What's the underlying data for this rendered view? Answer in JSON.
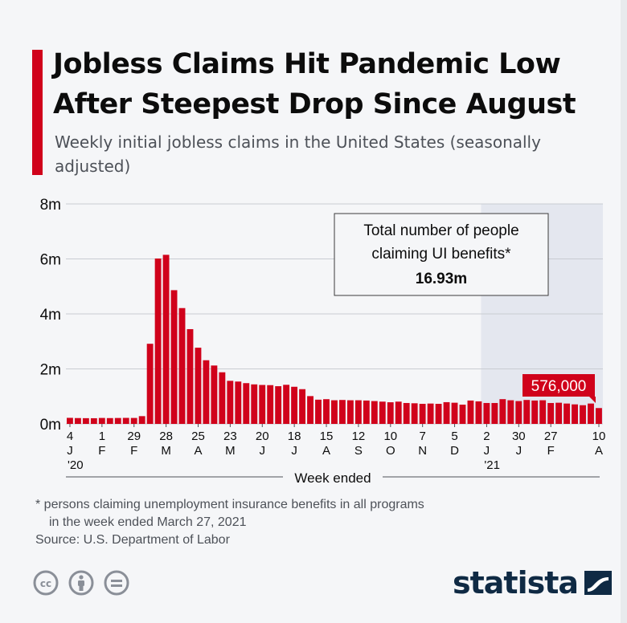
{
  "header": {
    "title": "Jobless Claims Hit Pandemic Low After Steepest Drop Since August",
    "subtitle": "Weekly initial jobless claims in the United States (seasonally adjusted)"
  },
  "annotation": {
    "line1": "Total number of people",
    "line2": "claiming UI benefits*",
    "value": "16.93m"
  },
  "callout": "576,000",
  "axis_title": "Week ended",
  "footnote": {
    "line1": "* persons claiming unemployment insurance benefits in all programs",
    "line2": "in the week ended March 27, 2021"
  },
  "source": "Source: U.S. Department of Labor",
  "brand": "statista",
  "icons": [
    "cc-icon",
    "attribution-icon",
    "no-derivatives-icon"
  ],
  "colors": {
    "bar": "#d0021b",
    "highlight": "#e4e7ef",
    "title": "#0c0c0c",
    "text": "#4d5158"
  },
  "chart_data": {
    "type": "bar",
    "title": "Jobless Claims Hit Pandemic Low After Steepest Drop Since August",
    "subtitle": "Weekly initial jobless claims in the United States (seasonally adjusted)",
    "xlabel": "Week ended",
    "ylabel": "",
    "ylim": [
      0,
      8000000
    ],
    "yticks": [
      "0m",
      "2m",
      "4m",
      "6m",
      "8m"
    ],
    "grid": true,
    "highlight_region": "2021",
    "x_ticks": [
      {
        "i": 0,
        "day": "4",
        "month": "J",
        "year": "'20"
      },
      {
        "i": 4,
        "day": "1",
        "month": "F"
      },
      {
        "i": 8,
        "day": "29",
        "month": "F"
      },
      {
        "i": 12,
        "day": "28",
        "month": "M"
      },
      {
        "i": 16,
        "day": "25",
        "month": "A"
      },
      {
        "i": 20,
        "day": "23",
        "month": "M"
      },
      {
        "i": 24,
        "day": "20",
        "month": "J"
      },
      {
        "i": 28,
        "day": "18",
        "month": "J"
      },
      {
        "i": 32,
        "day": "15",
        "month": "A"
      },
      {
        "i": 36,
        "day": "12",
        "month": "S"
      },
      {
        "i": 40,
        "day": "10",
        "month": "O"
      },
      {
        "i": 44,
        "day": "7",
        "month": "N"
      },
      {
        "i": 48,
        "day": "5",
        "month": "D"
      },
      {
        "i": 52,
        "day": "2",
        "month": "J",
        "year": "'21"
      },
      {
        "i": 56,
        "day": "30",
        "month": "J"
      },
      {
        "i": 60,
        "day": "27",
        "month": "F"
      },
      {
        "i": 66,
        "day": "10",
        "month": "A"
      }
    ],
    "values": [
      220000,
      212000,
      208000,
      206000,
      216000,
      211000,
      215000,
      219000,
      216000,
      282000,
      2914000,
      6015000,
      6149000,
      4863000,
      4212000,
      3446000,
      2771000,
      2315000,
      2123000,
      1877000,
      1566000,
      1540000,
      1482000,
      1437000,
      1416000,
      1409000,
      1371000,
      1422000,
      1350000,
      1263000,
      1011000,
      881000,
      899000,
      860000,
      870000,
      860000,
      860000,
      850000,
      830000,
      810000,
      787000,
      810000,
      760000,
      750000,
      730000,
      740000,
      730000,
      790000,
      770000,
      700000,
      850000,
      820000,
      760000,
      760000,
      900000,
      860000,
      830000,
      870000,
      850000,
      860000,
      760000,
      770000,
      740000,
      710000,
      680000,
      740000,
      576000
    ]
  }
}
